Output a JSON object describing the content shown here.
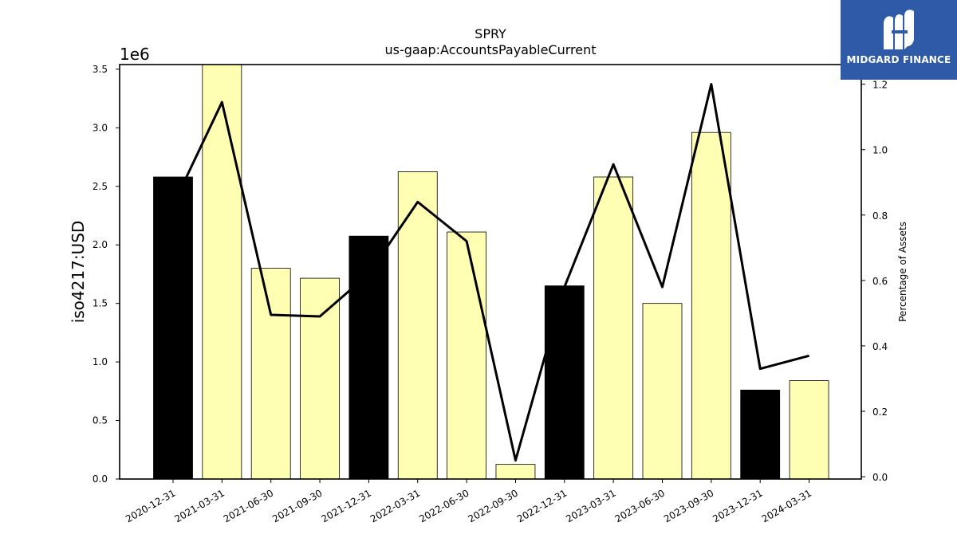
{
  "chart_data": {
    "type": "bar",
    "title": "SPRY",
    "subtitle": "us-gaap:AccountsPayableCurrent",
    "ylabel": "iso4217:USD",
    "y_offset_label": "1e6",
    "y2label": "Percentage of Assets",
    "categories": [
      "2020-12-31",
      "2021-03-31",
      "2021-06-30",
      "2021-09-30",
      "2021-12-31",
      "2022-03-31",
      "2022-06-30",
      "2022-09-30",
      "2022-12-31",
      "2023-03-31",
      "2023-06-30",
      "2023-09-30",
      "2023-12-31",
      "2024-03-31"
    ],
    "series": [
      {
        "type": "bar",
        "values": [
          2580000,
          3540000,
          1800000,
          1715000,
          2075000,
          2625000,
          2110000,
          125000,
          1650000,
          2580000,
          1500000,
          2960000,
          760000,
          840000
        ],
        "colors": [
          "#000000",
          "#ffffb3",
          "#ffffb3",
          "#ffffb3",
          "#000000",
          "#ffffb3",
          "#ffffb3",
          "#ffffb3",
          "#000000",
          "#ffffb3",
          "#ffffb3",
          "#ffffb3",
          "#000000",
          "#ffffb3"
        ]
      },
      {
        "type": "line",
        "axis": "right",
        "values": [
          0.83,
          1.145,
          0.495,
          0.49,
          0.62,
          0.84,
          0.72,
          0.05,
          0.58,
          0.955,
          0.58,
          1.2,
          0.33,
          0.37
        ]
      }
    ],
    "ylim": [
      0,
      3540000
    ],
    "y_ticks": [
      0.0,
      0.5,
      1.0,
      1.5,
      2.0,
      2.5,
      3.0,
      3.5
    ],
    "y2lim": [
      -0.007,
      1.26
    ],
    "y2_ticks": [
      0.0,
      0.2,
      0.4,
      0.6,
      0.8,
      1.0,
      1.2
    ],
    "grid": false,
    "colors": {
      "highlight_bar": "#000000",
      "normal_bar": "#ffffb3",
      "line": "#000000"
    }
  },
  "logo": {
    "text": "MIDGARD FINANCE",
    "background": "#2f5aa8"
  }
}
